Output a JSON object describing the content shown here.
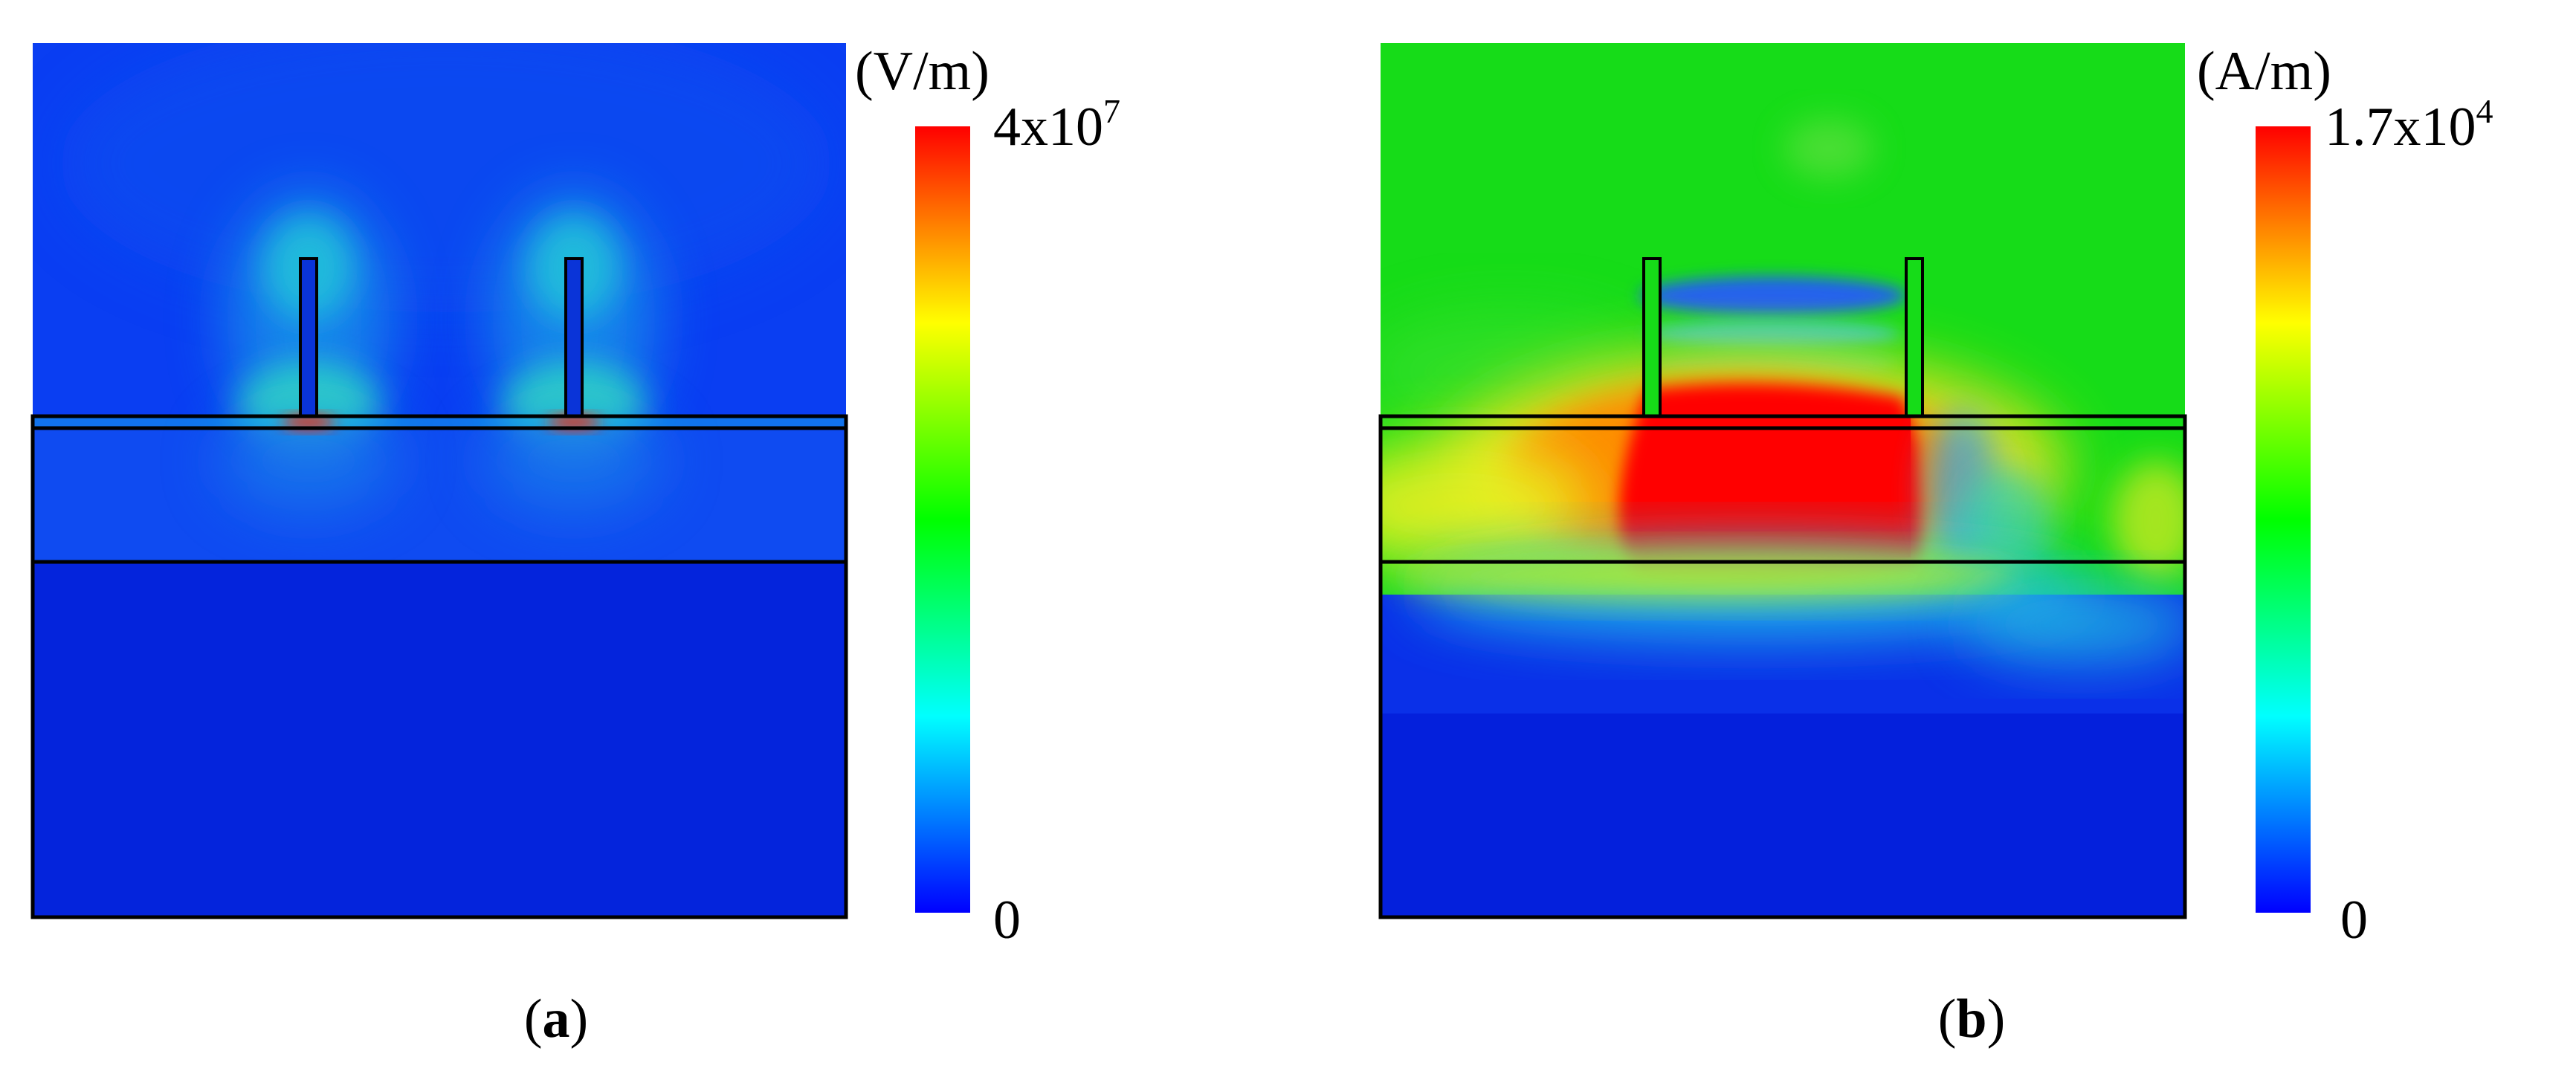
{
  "panels": [
    {
      "letter": "a",
      "paren_open": "(",
      "paren_close": ")",
      "colorbar": {
        "unit": "(V/m)",
        "max_base": "4x10",
        "max_exp": "7",
        "min": "0"
      }
    },
    {
      "letter": "b",
      "paren_open": "(",
      "paren_close": ")",
      "colorbar": {
        "unit": "(A/m)",
        "max_base": "1.7x10",
        "max_exp": "4",
        "min": "0"
      }
    }
  ],
  "colormap": [
    "#0000ff",
    "#00ffff",
    "#00ff00",
    "#ffff00",
    "#ff0000"
  ],
  "field_colors": {
    "deep_blue": "#0022dd",
    "blue": "#0a3cf0",
    "green": "#14e014",
    "red": "#ff0000"
  }
}
